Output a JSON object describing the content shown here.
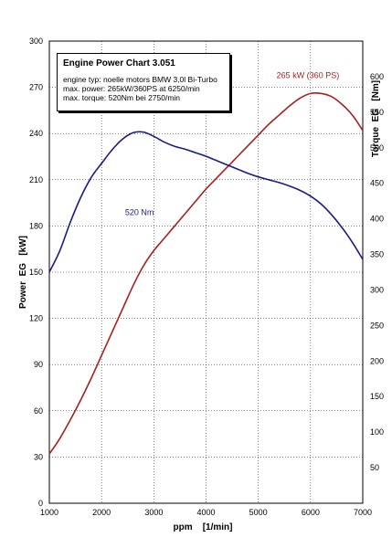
{
  "chart_data": {
    "type": "line",
    "title": "Engine Power Chart 3.051",
    "info_lines": [
      "engine typ: noelle motors BMW 3,0l Bi-Turbo",
      "max. power: 265kW/360PS at 6250/min",
      "max. torque:  520Nm bei 2750/min"
    ],
    "xlabel": "ppm    [1/min]",
    "ylabel_left": "Power  EG   [kW]",
    "ylabel_right": "Torque  EG   [Nm]",
    "xlim": [
      1000,
      7000
    ],
    "ylim_left": [
      0,
      300
    ],
    "ylim_right": [
      0,
      650
    ],
    "x_ticks": [
      "1000",
      "2000",
      "3000",
      "4000",
      "5000",
      "6000",
      "7000"
    ],
    "y_ticks_left": [
      "0",
      "30",
      "60",
      "90",
      "120",
      "150",
      "180",
      "210",
      "240",
      "270",
      "300"
    ],
    "y_ticks_right": [
      "50",
      "100",
      "150",
      "200",
      "250",
      "300",
      "350",
      "400",
      "450",
      "500",
      "550",
      "600"
    ],
    "grid": true,
    "series": [
      {
        "axis": "left",
        "color": "#aa1f1f",
        "x": [
          1000,
          1200,
          1400,
          1600,
          1800,
          2000,
          2200,
          2400,
          2600,
          2800,
          3000,
          3200,
          3400,
          3600,
          3800,
          4000,
          4200,
          4400,
          4600,
          4800,
          5000,
          5200,
          5400,
          5600,
          5800,
          6000,
          6200,
          6400,
          6600,
          6800,
          7000
        ],
        "y": [
          32,
          42,
          54,
          67,
          81,
          96,
          111,
          126,
          141,
          154,
          164,
          172,
          180,
          188,
          196,
          204,
          211,
          218,
          225,
          232,
          239,
          246,
          252,
          258,
          263,
          266,
          266,
          264,
          259,
          252,
          242
        ]
      },
      {
        "axis": "right",
        "color": "#1a1a8c",
        "x": [
          1000,
          1200,
          1400,
          1600,
          1800,
          2000,
          2200,
          2400,
          2600,
          2800,
          3000,
          3200,
          3400,
          3600,
          3800,
          4000,
          4200,
          4400,
          4600,
          4800,
          5000,
          5200,
          5400,
          5600,
          5800,
          6000,
          6200,
          6400,
          6600,
          6800,
          7000
        ],
        "y": [
          325,
          355,
          395,
          430,
          458,
          478,
          497,
          512,
          521,
          522,
          516,
          508,
          502,
          498,
          493,
          488,
          482,
          476,
          470,
          464,
          459,
          455,
          451,
          446,
          440,
          432,
          421,
          406,
          388,
          367,
          343
        ]
      }
    ],
    "annotations": [
      {
        "text": "265 kW (360 PS)",
        "x": 5350,
        "y_left": 276,
        "color": "#aa1f1f"
      },
      {
        "text": "520 Nm",
        "x": 2450,
        "y_left": 187,
        "color": "#1a1a8c"
      }
    ]
  }
}
